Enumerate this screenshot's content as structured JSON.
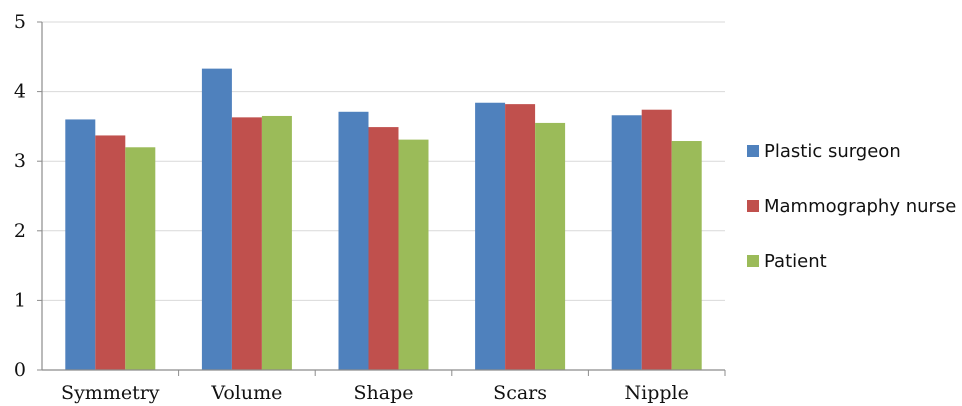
{
  "chart_data": {
    "type": "bar",
    "categories": [
      "Symmetry",
      "Volume",
      "Shape",
      "Scars",
      "Nipple"
    ],
    "series": [
      {
        "name": "Plastic surgeon",
        "values": [
          3.6,
          4.33,
          3.71,
          3.84,
          3.66
        ],
        "color": "#4f81bd"
      },
      {
        "name": "Mammography nurse",
        "values": [
          3.37,
          3.63,
          3.49,
          3.82,
          3.74
        ],
        "color": "#c0504d"
      },
      {
        "name": "Patient",
        "values": [
          3.2,
          3.65,
          3.31,
          3.55,
          3.29
        ],
        "color": "#9bbb59"
      }
    ],
    "ylim": [
      0,
      5
    ],
    "yticks": [
      "0",
      "1",
      "2",
      "3",
      "4",
      "5"
    ],
    "grid": true,
    "legend_position": "right",
    "gridline_color": "#d9d9d9",
    "axis_color": "#8c8c8c"
  }
}
